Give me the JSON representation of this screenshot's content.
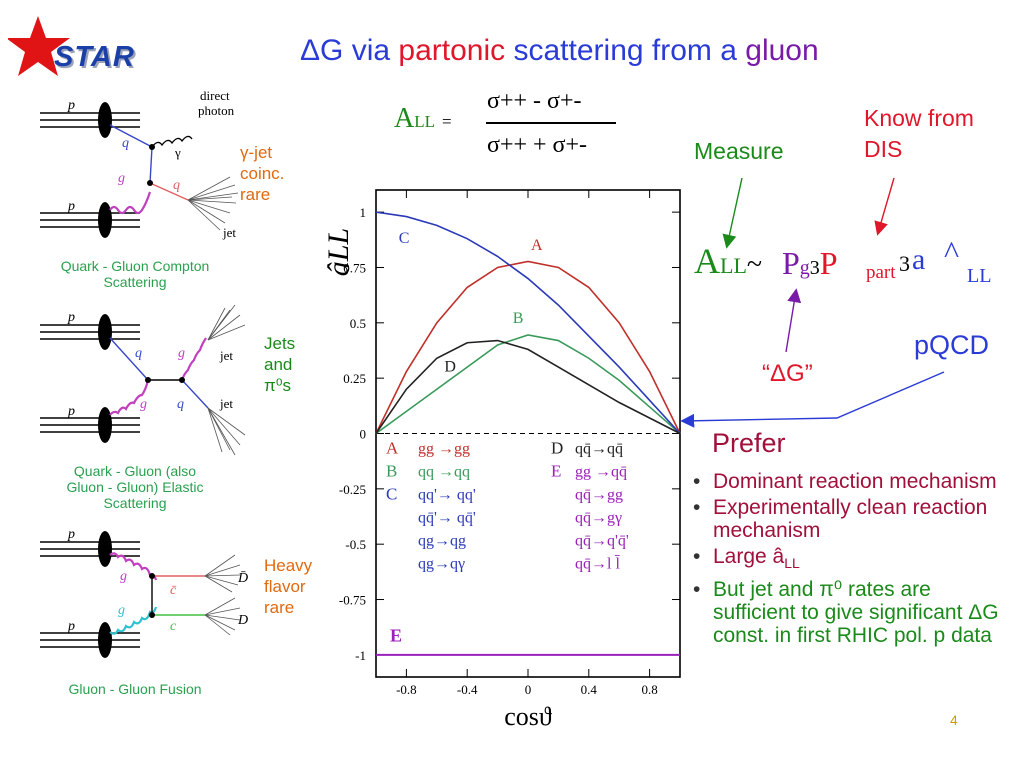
{
  "logo": {
    "text": "STAR",
    "star_color": "#e01414"
  },
  "title": {
    "delta": "ΔG",
    "via": "via",
    "partonic": "partonic",
    "scattering_from_a": "scattering from a",
    "gluon": "gluon"
  },
  "formula_top": {
    "A": "A",
    "LL": "LL",
    "equals": "=",
    "numerator": "σ++ - σ+-",
    "denominator": "σ++ + σ+-"
  },
  "diagrams": {
    "compton": {
      "labels": [
        "p",
        "q",
        "g",
        "q",
        "p",
        "direct",
        "photon",
        "γ",
        "jet"
      ],
      "caption_line1": "Quark - Gluon Compton",
      "caption_line2": "Scattering",
      "side_note": [
        "γ-jet",
        "coinc.",
        "rare"
      ]
    },
    "elastic": {
      "labels": [
        "p",
        "q",
        "g",
        "q",
        "p",
        "g",
        "jet",
        "jet"
      ],
      "caption_line1": "Quark - Gluon (also",
      "caption_line2": "Gluon - Gluon) Elastic",
      "caption_line3": "Scattering",
      "side_note": [
        "Jets",
        "and",
        "π⁰s"
      ]
    },
    "fusion": {
      "labels": [
        "p",
        "g",
        "g",
        "p",
        "c̄",
        "c",
        "D̄",
        "D"
      ],
      "caption_line1": "Gluon - Gluon Fusion",
      "side_note": [
        "Heavy",
        "flavor",
        "rare"
      ]
    }
  },
  "chart_data": {
    "type": "line",
    "ylabel": "âLL",
    "xlabel": "cosϑ",
    "xlim": [
      -1,
      1
    ],
    "ylim": [
      -1.1,
      1.1
    ],
    "xticks": [
      -0.8,
      -0.4,
      0,
      0.4,
      0.8
    ],
    "yticks": [
      1,
      0.75,
      0.5,
      0.25,
      0,
      -0.25,
      -0.5,
      -0.75,
      -1
    ],
    "series": [
      {
        "name": "A",
        "color": "#c0302a",
        "x": [
          -1,
          -0.8,
          -0.6,
          -0.4,
          -0.2,
          0,
          0.2,
          0.4,
          0.6,
          0.8,
          1
        ],
        "y": [
          0,
          0.28,
          0.5,
          0.66,
          0.75,
          0.777,
          0.75,
          0.66,
          0.5,
          0.28,
          0
        ]
      },
      {
        "name": "B",
        "color": "#3a9a5a",
        "x": [
          -1,
          -0.8,
          -0.6,
          -0.4,
          -0.2,
          0,
          0.2,
          0.4,
          0.6,
          0.8,
          1
        ],
        "y": [
          0,
          0.1,
          0.2,
          0.3,
          0.4,
          0.445,
          0.42,
          0.34,
          0.24,
          0.12,
          0
        ]
      },
      {
        "name": "C",
        "color": "#2a3ab8",
        "x": [
          -1,
          -0.8,
          -0.6,
          -0.4,
          -0.2,
          0,
          0.2,
          0.4,
          0.6,
          0.8,
          1
        ],
        "y": [
          1,
          0.98,
          0.94,
          0.88,
          0.8,
          0.7,
          0.58,
          0.44,
          0.3,
          0.15,
          0
        ]
      },
      {
        "name": "D",
        "color": "#222222",
        "x": [
          -1,
          -0.8,
          -0.6,
          -0.4,
          -0.2,
          0,
          0.2,
          0.4,
          0.6,
          0.8,
          1
        ],
        "y": [
          0,
          0.2,
          0.34,
          0.41,
          0.42,
          0.38,
          0.3,
          0.22,
          0.14,
          0.07,
          0
        ]
      },
      {
        "name": "E",
        "color": "#9a20b8",
        "x": [
          -1,
          1
        ],
        "y": [
          -1,
          -1
        ]
      }
    ],
    "legend": {
      "rows": [
        {
          "key": "A",
          "key_color": "#c0302a",
          "text": "gg →gg",
          "text_color": "#c0302a"
        },
        {
          "key": "B",
          "key_color": "#3a9a5a",
          "text": "qq →qq",
          "text_color": "#3a9a5a"
        },
        {
          "key": "C",
          "key_color": "#2a3ab8",
          "text": "qq'→ qq'",
          "text_color": "#2a3ab8"
        },
        {
          "key": "",
          "key_color": "#2a3ab8",
          "text": "qq̄'→ qq̄'",
          "text_color": "#2a3ab8"
        },
        {
          "key": "",
          "key_color": "#2a3ab8",
          "text": "qg→qg",
          "text_color": "#2a3ab8"
        },
        {
          "key": "",
          "key_color": "#2a3ab8",
          "text": "qg→qγ",
          "text_color": "#2a3ab8"
        }
      ],
      "rows_right": [
        {
          "key": "D",
          "key_color": "#222222",
          "text": "qq̄→qq̄",
          "text_color": "#222222"
        },
        {
          "key": "E",
          "key_color": "#9a20b8",
          "text": "gg →qq̄",
          "text_color": "#9a20b8"
        },
        {
          "key": "",
          "key_color": "#9a20b8",
          "text": "qq̄→gg",
          "text_color": "#9a20b8"
        },
        {
          "key": "",
          "key_color": "#9a20b8",
          "text": "qq̄→gγ",
          "text_color": "#9a20b8"
        },
        {
          "key": "",
          "key_color": "#9a20b8",
          "text": "qq̄→q'q̄'",
          "text_color": "#9a20b8"
        },
        {
          "key": "",
          "key_color": "#9a20b8",
          "text": "qq̄→l l̄",
          "text_color": "#9a20b8"
        }
      ],
      "e_label": "E"
    },
    "curve_labels": [
      "A",
      "B",
      "C",
      "D"
    ]
  },
  "annotations": {
    "measure": "Measure",
    "know_from_line1": "Know from",
    "know_from_line2": "DIS",
    "formula_mid": {
      "A": "A",
      "LL": "LL",
      "tilde": "~",
      "P": "P",
      "g": "g",
      "three1": "3",
      "P2": "P",
      "part": "part",
      "three2": "3",
      "a": "a",
      "caret": "^",
      "LL2": "LL"
    },
    "delta_g_quote": "“ΔG”",
    "pqcd": "pQCD"
  },
  "prefer": {
    "heading": "Prefer",
    "items": [
      {
        "text": "Dominant reaction mechanism",
        "color": "#a0103a"
      },
      {
        "text": "Experimentally clean reaction mechanism",
        "color": "#a0103a"
      },
      {
        "text_a": "Large â",
        "text_sub": "LL",
        "color": "#a0103a"
      },
      {
        "text": "But jet and π⁰ rates are sufficient to give significant ΔG const.  in first RHIC pol. p data",
        "color": "#1a8a1a"
      }
    ]
  },
  "page_number": "4"
}
